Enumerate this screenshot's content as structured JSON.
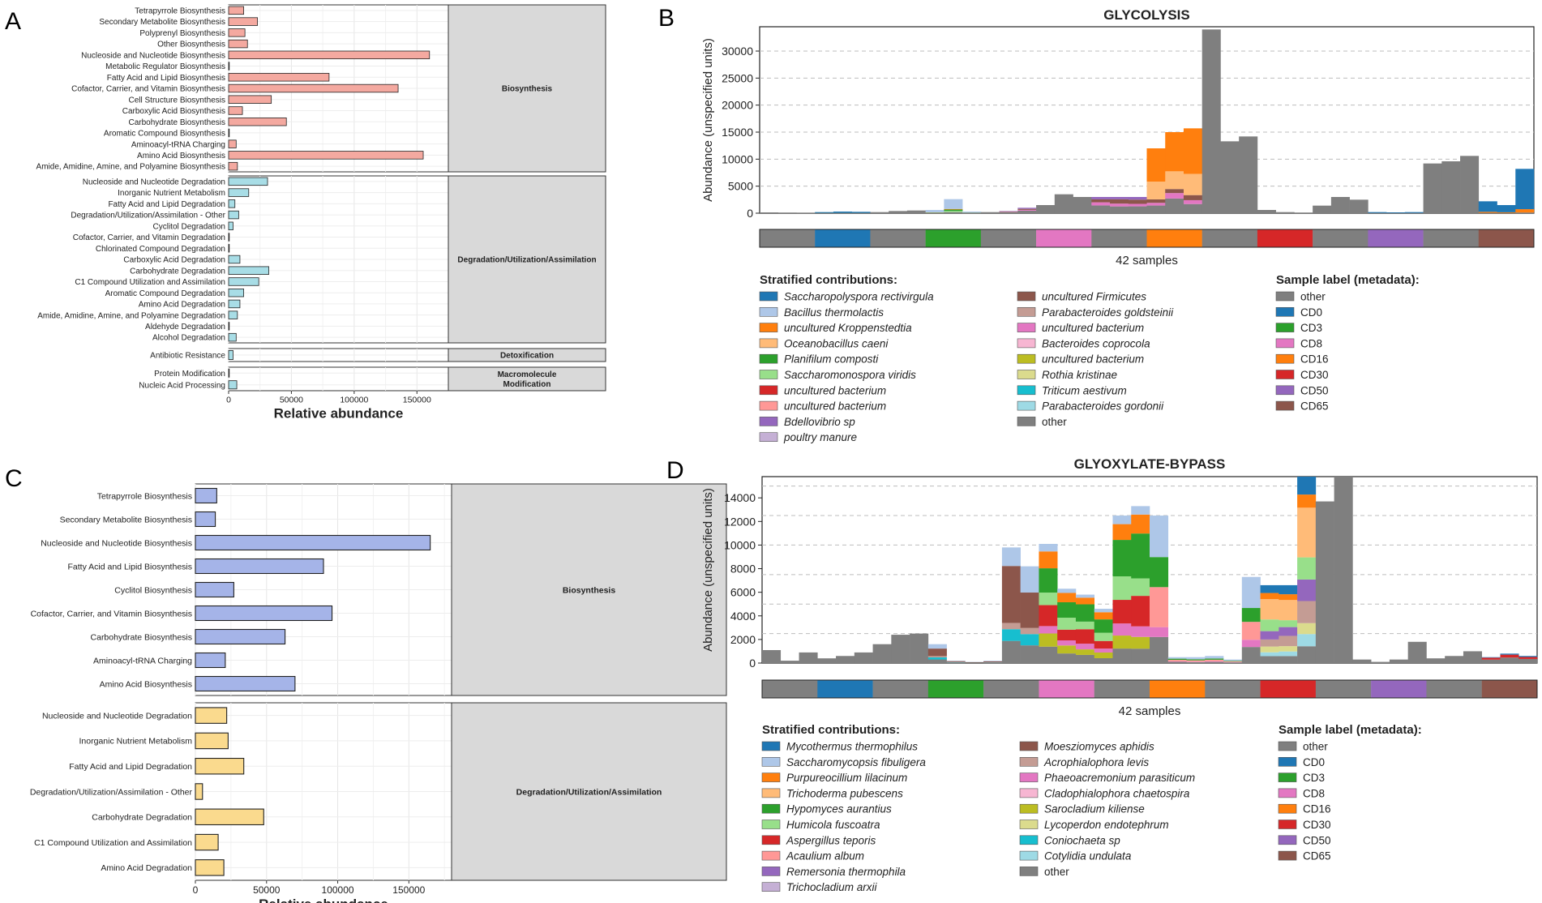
{
  "panels": {
    "a": "A",
    "b": "B",
    "c": "C",
    "d": "D"
  },
  "chart_data": [
    {
      "type": "bar",
      "orientation": "horizontal",
      "xlabel": "Relative abundance",
      "xlim": [
        0,
        175000
      ],
      "xticks": [
        0,
        50000,
        100000,
        150000
      ],
      "groups": [
        {
          "name": "Biosynthesis",
          "color": "#F4A9A0",
          "categories": [
            "Tetrapyrrole Biosynthesis",
            "Secondary Metabolite Biosynthesis",
            "Polyprenyl Biosynthesis",
            "Other Biosynthesis",
            "Nucleoside and Nucleotide Biosynthesis",
            "Metabolic Regulator Biosynthesis",
            "Fatty Acid and Lipid Biosynthesis",
            "Cofactor, Carrier, and Vitamin Biosynthesis",
            "Cell Structure Biosynthesis",
            "Carboxylic Acid Biosynthesis",
            "Carbohydrate Biosynthesis",
            "Aromatic Compound Biosynthesis",
            "Aminoacyl-tRNA Charging",
            "Amino Acid Biosynthesis",
            "Amide, Amidine, Amine, and Polyamine Biosynthesis"
          ],
          "values": [
            12000,
            23000,
            13000,
            15000,
            160000,
            500,
            80000,
            135000,
            34000,
            11000,
            46000,
            300,
            6000,
            155000,
            7000
          ]
        },
        {
          "name": "Degradation/Utilization/Assimilation",
          "color": "#A8DDE6",
          "categories": [
            "Nucleoside and Nucleotide Degradation",
            "Inorganic Nutrient Metabolism",
            "Fatty Acid and Lipid Degradation",
            "Degradation/Utilization/Assimilation - Other",
            "Cyclitol Degradation",
            "Cofactor, Carrier, and Vitamin Degradation",
            "Chlorinated Compound Degradation",
            "Carboxylic Acid Degradation",
            "Carbohydrate Degradation",
            "C1 Compound Utilization and Assimilation",
            "Aromatic Compound Degradation",
            "Amino Acid Degradation",
            "Amide, Amidine, Amine, and Polyamine Degradation",
            "Aldehyde Degradation",
            "Alcohol Degradation"
          ],
          "values": [
            31000,
            16000,
            5000,
            8000,
            3500,
            500,
            300,
            9000,
            32000,
            24000,
            12000,
            9000,
            7000,
            500,
            6000
          ]
        },
        {
          "name": "Detoxification",
          "color": "#A8DDE6",
          "categories": [
            "Antibiotic Resistance"
          ],
          "values": [
            3500
          ]
        },
        {
          "name": "Macromolecule\nModification",
          "color": "#A8DDE6",
          "categories": [
            "Protein Modification",
            "Nucleic Acid Processing"
          ],
          "values": [
            500,
            6500
          ]
        }
      ]
    },
    {
      "type": "bar",
      "stacked": true,
      "title": "GLYCOLYSIS",
      "ylabel": "Abundance (unspecified units)",
      "xlabel": "42 samples",
      "ylim": [
        0,
        30000
      ],
      "yticks": [
        0,
        5000,
        10000,
        15000,
        20000,
        25000,
        30000
      ],
      "n_samples": 42,
      "sample_labels": [
        "other",
        "CD0",
        "other",
        "CD3",
        "other",
        "CD8",
        "other",
        "CD16",
        "other",
        "CD30",
        "other",
        "CD50",
        "other",
        "CD65"
      ],
      "legend_title": "Stratified contributions:",
      "series_names": [
        "Saccharopolyspora rectivirgula",
        "Bacillus thermolactis",
        "uncultured Kroppenstedtia",
        "Oceanobacillus caeni",
        "Planifilum composti",
        "Saccharomonospora viridis",
        "uncultured bacterium",
        "uncultured bacterium",
        "Bdellovibrio sp",
        "poultry manure",
        "uncultured Firmicutes",
        "Parabacteroides goldsteinii",
        "uncultured bacterium",
        "Bacteroides coprocola",
        "uncultured bacterium",
        "Rothia kristinae",
        "Triticum aestivum",
        "Parabacteroides gordonii",
        "other"
      ],
      "series_colors": [
        "#1f77b4",
        "#aec7e8",
        "#ff7f0e",
        "#ffbb78",
        "#2ca02c",
        "#98df8a",
        "#d62728",
        "#ff9896",
        "#9467bd",
        "#c5b0d5",
        "#8c564b",
        "#c49c94",
        "#e377c2",
        "#f7b6d2",
        "#bcbd22",
        "#dbdb8d",
        "#17becf",
        "#9edae5",
        "#7f7f7f"
      ],
      "sample_totals": [
        150,
        100,
        80,
        200,
        300,
        250,
        200,
        400,
        500,
        600,
        2600,
        300,
        200,
        400,
        1000,
        1500,
        3500,
        3000,
        3000,
        3000,
        3000,
        12000,
        15000,
        15700,
        34000,
        13300,
        14200,
        600,
        200,
        100,
        1400,
        3000,
        2500,
        200,
        150,
        200,
        9200,
        9600,
        10600,
        2200,
        1500,
        8200
      ]
    },
    {
      "type": "bar",
      "orientation": "horizontal",
      "xlabel": "Relative abundance",
      "xlim": [
        0,
        180000
      ],
      "xticks": [
        0,
        50000,
        100000,
        150000
      ],
      "groups": [
        {
          "name": "Biosynthesis",
          "color": "#A5B4E8",
          "categories": [
            "Tetrapyrrole Biosynthesis",
            "Secondary Metabolite Biosynthesis",
            "Nucleoside and Nucleotide Biosynthesis",
            "Fatty Acid and Lipid Biosynthesis",
            "Cyclitol Biosynthesis",
            "Cofactor, Carrier, and Vitamin Biosynthesis",
            "Carbohydrate Biosynthesis",
            "Aminoacyl-tRNA Charging",
            "Amino Acid Biosynthesis"
          ],
          "values": [
            15000,
            14000,
            165000,
            90000,
            27000,
            96000,
            63000,
            21000,
            70000
          ]
        },
        {
          "name": "Degradation/Utilization/Assimilation",
          "color": "#FADA8E",
          "categories": [
            "Nucleoside and Nucleotide Degradation",
            "Inorganic Nutrient Metabolism",
            "Fatty Acid and Lipid Degradation",
            "Degradation/Utilization/Assimilation - Other",
            "Carbohydrate Degradation",
            "C1 Compound Utilization and Assimilation",
            "Amino Acid Degradation"
          ],
          "values": [
            22000,
            23000,
            34000,
            5000,
            48000,
            16000,
            20000
          ]
        }
      ]
    },
    {
      "type": "bar",
      "stacked": true,
      "title": "GLYOXYLATE-BYPASS",
      "ylabel": "Abundance (unspecified units)",
      "xlabel": "42 samples",
      "ylim": [
        0,
        15000
      ],
      "yticks": [
        0,
        2000,
        4000,
        6000,
        8000,
        10000,
        12000,
        14000
      ],
      "n_samples": 42,
      "sample_labels": [
        "other",
        "CD0",
        "other",
        "CD3",
        "other",
        "CD8",
        "other",
        "CD16",
        "other",
        "CD30",
        "other",
        "CD50",
        "other",
        "CD65"
      ],
      "legend_title": "Stratified contributions:",
      "series_names": [
        "Mycothermus thermophilus",
        "Saccharomycopsis fibuligera",
        "Purpureocillium lilacinum",
        "Trichoderma pubescens",
        "Hypomyces aurantius",
        "Humicola fuscoatra",
        "Aspergillus teporis",
        "Acaulium album",
        "Remersonia thermophila",
        "Trichocladium arxii",
        "Moesziomyces aphidis",
        "Acrophialophora levis",
        "Phaeoacremonium parasiticum",
        "Cladophialophora chaetospira",
        "Sarocladium kiliense",
        "Lycoperdon endotephrum",
        "Coniochaeta sp",
        "Cotylidia undulata",
        "other"
      ],
      "series_colors": [
        "#1f77b4",
        "#aec7e8",
        "#ff7f0e",
        "#ffbb78",
        "#2ca02c",
        "#98df8a",
        "#d62728",
        "#ff9896",
        "#9467bd",
        "#c5b0d5",
        "#8c564b",
        "#c49c94",
        "#e377c2",
        "#f7b6d2",
        "#bcbd22",
        "#dbdb8d",
        "#17becf",
        "#9edae5",
        "#7f7f7f"
      ],
      "sample_totals": [
        1100,
        200,
        900,
        400,
        600,
        900,
        1600,
        2400,
        2500,
        1600,
        200,
        100,
        200,
        9800,
        8200,
        10100,
        6300,
        5800,
        4600,
        12500,
        13300,
        12500,
        500,
        500,
        600,
        300,
        7300,
        6600,
        6600,
        16000,
        13700,
        16000,
        300,
        100,
        300,
        1800,
        400,
        600,
        1000,
        500,
        800,
        600
      ]
    }
  ],
  "sample_legend": {
    "title": "Sample label (metadata):",
    "labels": [
      "other",
      "CD0",
      "CD3",
      "CD8",
      "CD16",
      "CD30",
      "CD50",
      "CD65"
    ],
    "colors": [
      "#7f7f7f",
      "#1f77b4",
      "#2ca02c",
      "#e377c2",
      "#ff7f0e",
      "#d62728",
      "#9467bd",
      "#8c564b"
    ]
  }
}
